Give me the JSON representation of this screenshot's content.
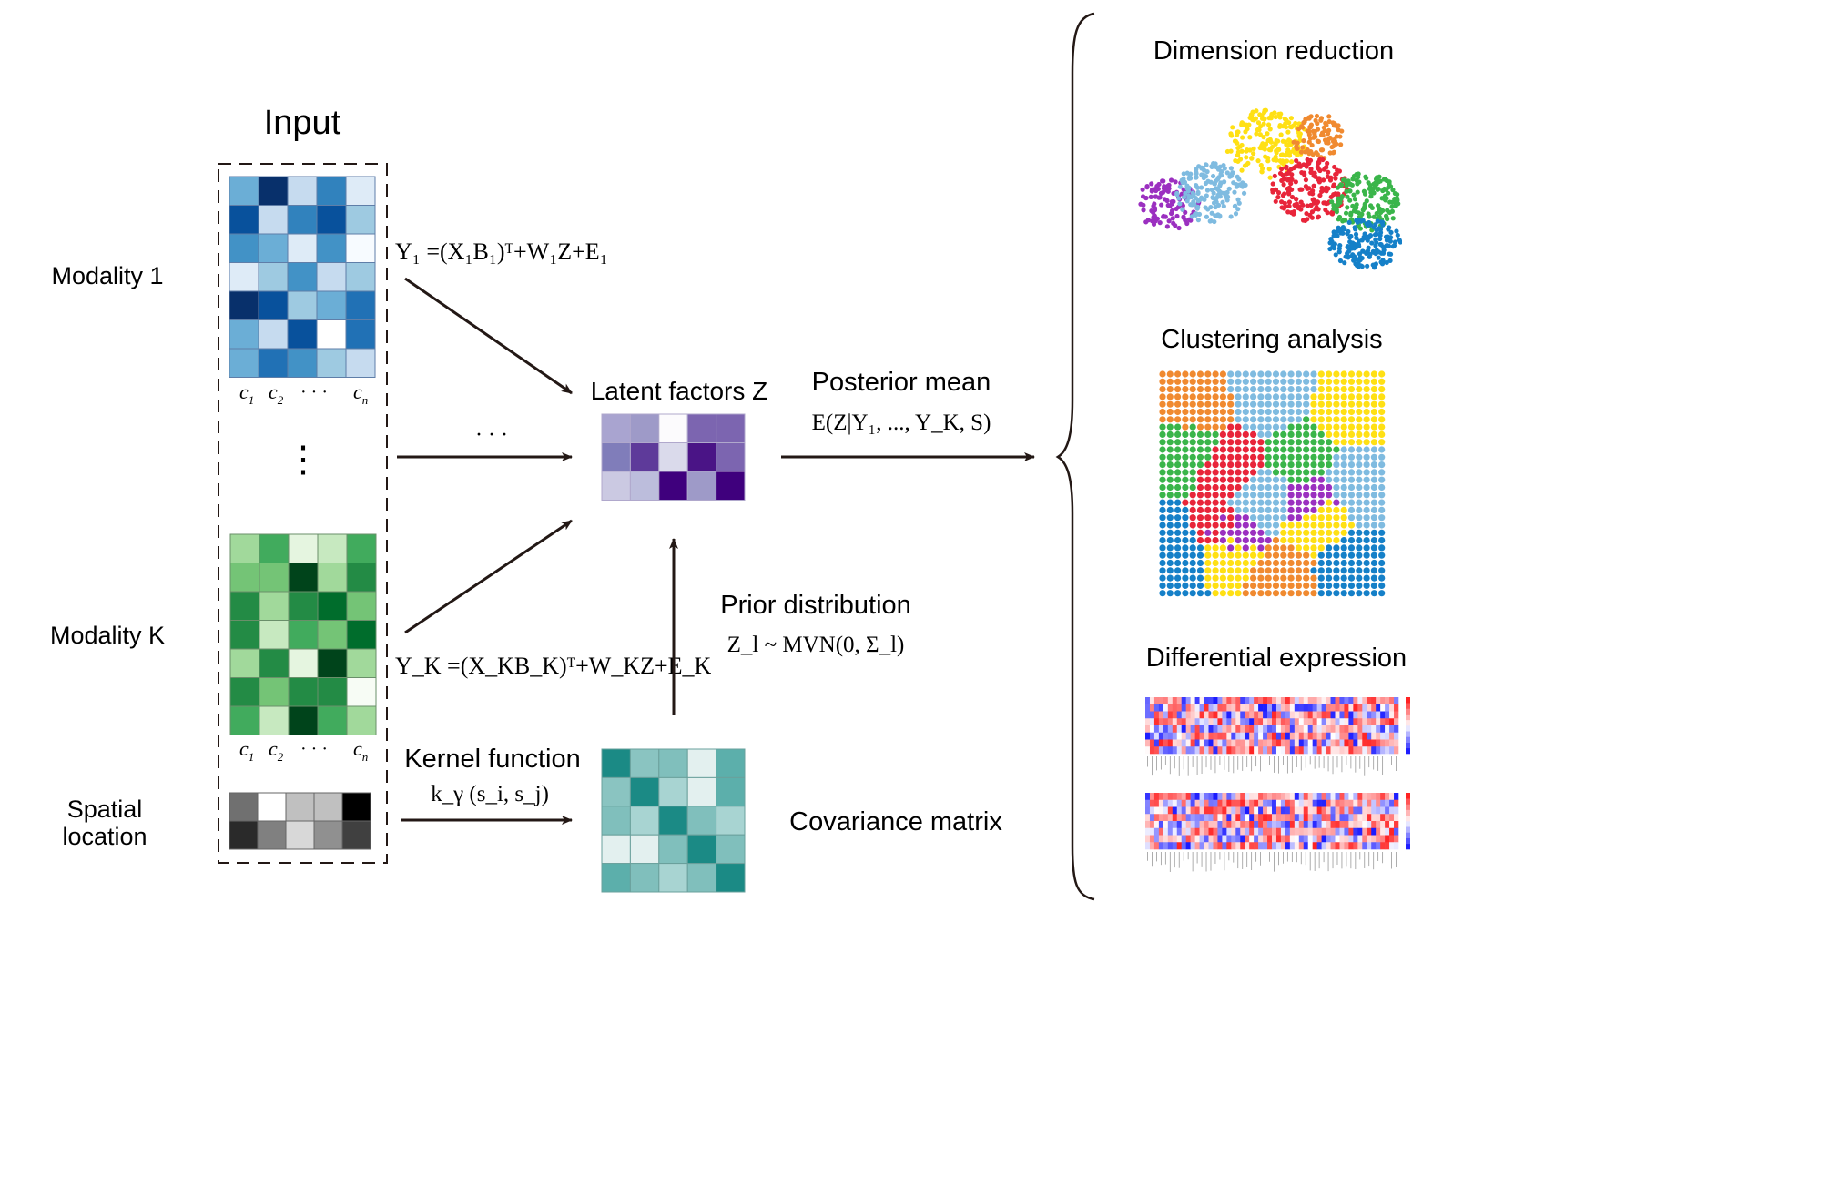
{
  "input_title": "Input",
  "modality1_label": "Modality 1",
  "modalityK_label": "Modality K",
  "spatial_label_line1": "Spatial",
  "spatial_label_line2": "location",
  "col_c1": "c",
  "col_c1_sub": "1",
  "col_c2": "c",
  "col_c2_sub": "2",
  "col_cn": "c",
  "col_cn_sub": "n",
  "col_dots": "· · ·",
  "vdots": "⋮",
  "hdots": "· · ·",
  "eq1": "Y₁ =(X₁B₁)ᵀ+W₁Z+E₁",
  "eqK": "Y_K =(X_KB_K)ᵀ+W_KZ+E_K",
  "latent_label": "Latent factors Z",
  "posterior_title": "Posterior mean",
  "posterior_formula": "E(Z|Y₁, ..., Y_K, S)",
  "prior_title": "Prior distribution",
  "prior_formula": "Z_l ~ MVN(0, Σ_l)",
  "kernel_title": "Kernel function",
  "kernel_formula": "k_γ (s_i, s_j)",
  "covariance_label": "Covariance matrix",
  "outputs": {
    "dimension": "Dimension reduction",
    "clustering": "Clustering analysis",
    "differential": "Differential expression"
  },
  "colors": {
    "blue_matrix": [
      [
        "#6baed6",
        "#08306b",
        "#c6dbef",
        "#3182bd",
        "#deebf7"
      ],
      [
        "#08519c",
        "#c6dbef",
        "#3182bd",
        "#08519c",
        "#9ecae1"
      ],
      [
        "#4292c6",
        "#6baed6",
        "#deebf7",
        "#4292c6",
        "#f7fbff"
      ],
      [
        "#deebf7",
        "#9ecae1",
        "#4292c6",
        "#c6dbef",
        "#9ecae1"
      ],
      [
        "#08306b",
        "#08519c",
        "#9ecae1",
        "#6baed6",
        "#2171b5"
      ],
      [
        "#6baed6",
        "#c6dbef",
        "#08519c",
        "#ffffff",
        "#2171b5"
      ],
      [
        "#6baed6",
        "#2171b5",
        "#4292c6",
        "#9ecae1",
        "#c6dbef"
      ]
    ],
    "green_matrix": [
      [
        "#a1d99b",
        "#41ab5d",
        "#e5f5e0",
        "#c7e9c0",
        "#41ab5d"
      ],
      [
        "#74c476",
        "#74c476",
        "#00441b",
        "#a1d99b",
        "#238b45"
      ],
      [
        "#238b45",
        "#a1d99b",
        "#238b45",
        "#006d2c",
        "#74c476"
      ],
      [
        "#238b45",
        "#c7e9c0",
        "#41ab5d",
        "#74c476",
        "#006d2c"
      ],
      [
        "#a1d99b",
        "#238b45",
        "#e5f5e0",
        "#00441b",
        "#a1d99b"
      ],
      [
        "#238b45",
        "#74c476",
        "#238b45",
        "#238b45",
        "#f7fcf5"
      ],
      [
        "#41ab5d",
        "#c7e9c0",
        "#00441b",
        "#41ab5d",
        "#a1d99b"
      ]
    ],
    "gray_matrix": [
      [
        "#707070",
        "#ffffff",
        "#c0c0c0",
        "#c0c0c0",
        "#000000"
      ],
      [
        "#2a2a2a",
        "#808080",
        "#d8d8d8",
        "#909090",
        "#404040"
      ]
    ],
    "purple_matrix": [
      [
        "#a9a4d0",
        "#9e9ac8",
        "#fcfbfd",
        "#7c65b0",
        "#7c65b0"
      ],
      [
        "#807dba",
        "#5e3a9a",
        "#dadaeb",
        "#4a1486",
        "#7c65b0"
      ],
      [
        "#cbc9e2",
        "#bcbddc",
        "#3f007d",
        "#9e9ac8",
        "#3f007d"
      ]
    ],
    "teal_matrix": [
      [
        "#1b8a85",
        "#8ac4c1",
        "#80bfbc",
        "#e3f0ef",
        "#5cafab"
      ],
      [
        "#8ac4c1",
        "#1b8a85",
        "#a8d4d2",
        "#e3f0ef",
        "#5cafab"
      ],
      [
        "#80bfbc",
        "#a8d4d2",
        "#1b8a85",
        "#80bfbc",
        "#a8d4d2"
      ],
      [
        "#e3f0ef",
        "#e3f0ef",
        "#80bfbc",
        "#1b8a85",
        "#80bfbc"
      ],
      [
        "#5cafab",
        "#80bfbc",
        "#a8d4d2",
        "#80bfbc",
        "#1b8a85"
      ]
    ],
    "cluster_palette": [
      "#9b30c0",
      "#7fbbe0",
      "#ffe014",
      "#f08a30",
      "#e8253a",
      "#3ab54a",
      "#1580c8"
    ]
  }
}
